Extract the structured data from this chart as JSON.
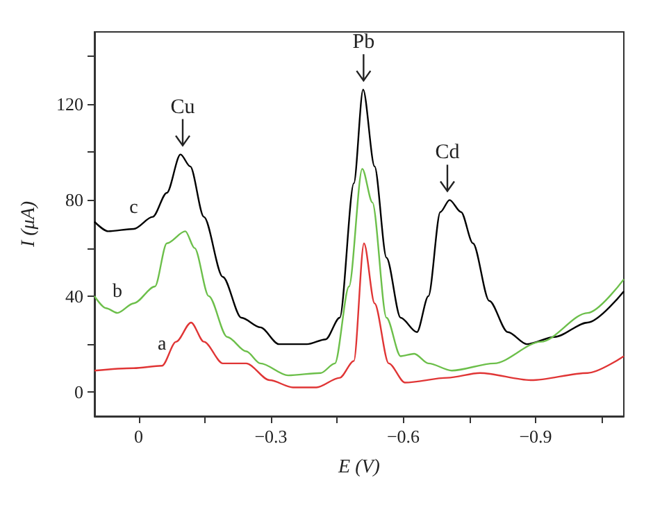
{
  "chart_data": {
    "type": "line",
    "xlabel": "E (V)",
    "ylabel": "I (μA)",
    "xlim": [
      0.1,
      -1.1
    ],
    "xticks": [
      {
        "value": 0,
        "label": "0"
      },
      {
        "value": -0.15,
        "label": null
      },
      {
        "value": -0.3,
        "label": "−0.3"
      },
      {
        "value": -0.45,
        "label": null
      },
      {
        "value": -0.6,
        "label": "−0.6"
      },
      {
        "value": -0.75,
        "label": null
      },
      {
        "value": -0.9,
        "label": "−0.9"
      },
      {
        "value": -1.05,
        "label": null
      }
    ],
    "ylim": [
      -10,
      150
    ],
    "yticks": [
      0,
      {
        "value": 20,
        "label": null
      },
      40,
      {
        "value": 60,
        "label": null
      },
      80,
      {
        "value": 100,
        "label": null
      },
      120,
      {
        "value": 140,
        "label": null
      }
    ],
    "grid": false,
    "legend": false,
    "marker": "none",
    "line_style": "solid",
    "series": [
      {
        "name": "c",
        "color": "#000000",
        "x": [
          0.1,
          0.069,
          0.011,
          -0.032,
          -0.064,
          -0.095,
          -0.117,
          -0.148,
          -0.191,
          -0.233,
          -0.276,
          -0.318,
          -0.382,
          -0.424,
          -0.456,
          -0.488,
          -0.509,
          -0.535,
          -0.562,
          -0.594,
          -0.631,
          -0.657,
          -0.684,
          -0.705,
          -0.731,
          -0.758,
          -0.795,
          -0.837,
          -0.88,
          -0.943,
          -1.018,
          -1.1
        ],
        "values": [
          71,
          67,
          68,
          73,
          83,
          99,
          94,
          73,
          48,
          31,
          27,
          20,
          20,
          22,
          31,
          87,
          126,
          94,
          56,
          31,
          25,
          40,
          75,
          80,
          75,
          62,
          38,
          25,
          20,
          23,
          29,
          42
        ]
      },
      {
        "name": "b",
        "color": "#6cbf4a",
        "x": [
          0.1,
          0.074,
          0.048,
          0.011,
          -0.037,
          -0.064,
          -0.106,
          -0.127,
          -0.159,
          -0.201,
          -0.244,
          -0.276,
          -0.339,
          -0.413,
          -0.445,
          -0.477,
          -0.507,
          -0.53,
          -0.562,
          -0.594,
          -0.625,
          -0.657,
          -0.71,
          -0.806,
          -0.912,
          -1.018,
          -1.1
        ],
        "values": [
          40,
          35,
          33,
          37,
          44,
          62,
          67,
          60,
          40,
          23,
          17,
          12,
          7,
          8,
          12,
          44,
          93,
          79,
          31,
          15,
          16,
          12,
          9,
          12,
          21,
          33,
          47
        ]
      },
      {
        "name": "a",
        "color": "#e03535",
        "x": [
          0.1,
          0.011,
          -0.053,
          -0.085,
          -0.119,
          -0.148,
          -0.191,
          -0.244,
          -0.297,
          -0.35,
          -0.403,
          -0.456,
          -0.488,
          -0.511,
          -0.535,
          -0.567,
          -0.604,
          -0.7,
          -0.774,
          -0.89,
          -1.018,
          -1.1
        ],
        "values": [
          9,
          10,
          11,
          21,
          29,
          21,
          12,
          12,
          5,
          2,
          2,
          6,
          13,
          62,
          37,
          12,
          4,
          6,
          8,
          5,
          8,
          15
        ]
      }
    ],
    "annotations": [
      {
        "text": "Cu",
        "x": -0.1,
        "y": 101
      },
      {
        "text": "Pb",
        "x": -0.51,
        "y": 128
      },
      {
        "text": "Cd",
        "x": -0.7,
        "y": 82
      }
    ]
  }
}
